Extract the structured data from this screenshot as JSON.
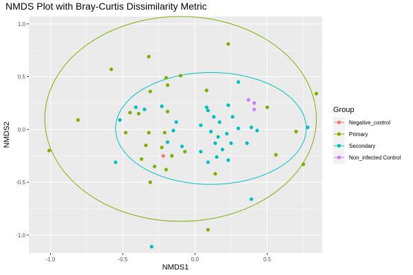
{
  "chart_data": {
    "type": "scatter",
    "title": "NMDS Plot with Bray-Curtis Dissimilarity Metric",
    "xlabel": "NMDS1",
    "ylabel": "NMDS2",
    "xlim": [
      -1.15,
      0.88
    ],
    "ylim": [
      -1.17,
      1.07
    ],
    "x_ticks": [
      -1.0,
      -0.5,
      0.0,
      0.5
    ],
    "x_tick_labels": [
      "-1.0",
      "-0.5",
      "0.0",
      "0.5"
    ],
    "y_ticks": [
      -1.0,
      -0.5,
      0.0,
      0.5,
      1.0
    ],
    "y_tick_labels": [
      "-1.0",
      "-0.5",
      "0.0",
      "0.5",
      "1.0"
    ],
    "grid": true,
    "legend": {
      "title": "Group",
      "position": "right",
      "entries": [
        "Negative_control",
        "Primary",
        "Secondary",
        "Non_infected Control"
      ]
    },
    "colors": {
      "Negative_control": "#F8766D",
      "Primary": "#7CAE00",
      "Secondary": "#00BFC4",
      "Non_infected Control": "#C77CFF"
    },
    "series": [
      {
        "name": "Negative_control",
        "points": [
          [
            -0.22,
            -0.25
          ]
        ]
      },
      {
        "name": "Primary",
        "points": [
          [
            -1.01,
            -0.2
          ],
          [
            -0.81,
            0.09
          ],
          [
            -0.58,
            0.57
          ],
          [
            -0.32,
            0.69
          ],
          [
            0.23,
            0.81
          ],
          [
            -0.2,
            0.49
          ],
          [
            -0.1,
            0.51
          ],
          [
            -0.19,
            0.42
          ],
          [
            -0.31,
            0.36
          ],
          [
            0.08,
            0.37
          ],
          [
            -0.39,
            0.15
          ],
          [
            -0.19,
            0.17
          ],
          [
            -0.45,
            0.16
          ],
          [
            -0.48,
            -0.03
          ],
          [
            -0.32,
            -0.03
          ],
          [
            -0.21,
            -0.03
          ],
          [
            -0.34,
            -0.15
          ],
          [
            -0.23,
            -0.17
          ],
          [
            -0.16,
            -0.25
          ],
          [
            -0.37,
            -0.28
          ],
          [
            -0.07,
            -0.21
          ],
          [
            -0.28,
            -0.35
          ],
          [
            -0.2,
            -0.38
          ],
          [
            -0.31,
            -0.5
          ],
          [
            0.14,
            -0.42
          ],
          [
            0.5,
            0.21
          ],
          [
            0.7,
            -0.02
          ],
          [
            0.56,
            -0.24
          ],
          [
            0.75,
            -0.33
          ],
          [
            0.84,
            0.34
          ],
          [
            0.09,
            -0.95
          ]
        ]
      },
      {
        "name": "Secondary",
        "points": [
          [
            -0.55,
            -0.31
          ],
          [
            -0.52,
            0.09
          ],
          [
            -0.41,
            0.21
          ],
          [
            -0.35,
            0.19
          ],
          [
            -0.23,
            0.22
          ],
          [
            -0.13,
            0.07
          ],
          [
            -0.15,
            -0.01
          ],
          [
            -0.09,
            -0.16
          ],
          [
            -0.19,
            -0.12
          ],
          [
            0.3,
            0.45
          ],
          [
            0.08,
            0.21
          ],
          [
            0.09,
            0.18
          ],
          [
            0.13,
            0.12
          ],
          [
            0.23,
            0.23
          ],
          [
            0.04,
            0.04
          ],
          [
            0.17,
            0.07
          ],
          [
            0.26,
            0.12
          ],
          [
            0.11,
            -0.02
          ],
          [
            0.16,
            -0.07
          ],
          [
            0.22,
            -0.04
          ],
          [
            0.3,
            0.01
          ],
          [
            0.39,
            0.02
          ],
          [
            0.43,
            -0.01
          ],
          [
            0.36,
            -0.13
          ],
          [
            0.25,
            -0.13
          ],
          [
            0.04,
            -0.21
          ],
          [
            0.15,
            -0.26
          ],
          [
            0.09,
            -0.31
          ],
          [
            0.23,
            -0.29
          ],
          [
            0.19,
            -0.19
          ],
          [
            0.14,
            -0.13
          ],
          [
            0.78,
            0.02
          ],
          [
            0.39,
            -0.66
          ],
          [
            -0.3,
            -1.11
          ]
        ]
      },
      {
        "name": "Non_infected Control",
        "points": [
          [
            0.37,
            0.28
          ],
          [
            0.41,
            0.25
          ],
          [
            0.41,
            0.19
          ]
        ]
      }
    ],
    "ellipses": [
      {
        "group": "Primary",
        "center": [
          -0.1,
          0.1
        ],
        "radius": [
          0.94,
          0.97
        ]
      },
      {
        "group": "Secondary",
        "center": [
          0.11,
          0.01
        ],
        "radius": [
          0.66,
          0.53
        ]
      }
    ]
  }
}
